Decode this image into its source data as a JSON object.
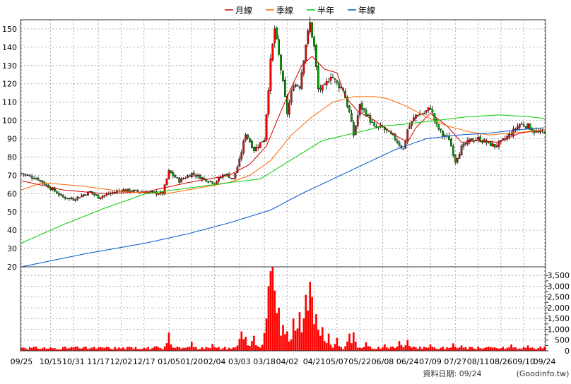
{
  "legend": {
    "items": [
      {
        "label": "月線",
        "color": "#cc0000"
      },
      {
        "label": "季線",
        "color": "#ff6600"
      },
      {
        "label": "半年",
        "color": "#00cc00"
      },
      {
        "label": "年線",
        "color": "#0055cc"
      }
    ]
  },
  "footer": {
    "data_date": "資料日期: 09/24",
    "source": "(Goodinfo.tw)"
  },
  "colors": {
    "up": "#ff0000",
    "down": "#00aa00",
    "grid": "#999999",
    "axis": "#333333",
    "volume": "#ff0000"
  },
  "chart_data": [
    {
      "type": "candlestick",
      "ylim": [
        20,
        155
      ],
      "y_ticks": [
        20,
        30,
        40,
        50,
        60,
        70,
        80,
        90,
        100,
        110,
        120,
        130,
        140,
        150
      ],
      "x_ticks": [
        "09/25",
        "10/15",
        "10/31",
        "11/17",
        "12/02",
        "12/17",
        "01/05",
        "01/20",
        "02/04",
        "03/03",
        "03/18",
        "04/02",
        "04/21",
        "05/07",
        "05/22",
        "06/08",
        "06/24",
        "07/09",
        "07/27",
        "08/11",
        "08/26",
        "09/10",
        "09/24"
      ],
      "x_tick_index": [
        0,
        14,
        25,
        37,
        48,
        59,
        71,
        82,
        93,
        105,
        117,
        128,
        141,
        152,
        163,
        174,
        186,
        197,
        209,
        220,
        231,
        242,
        252
      ],
      "n_sessions": 253,
      "price_anchors": [
        [
          0,
          71
        ],
        [
          8,
          68
        ],
        [
          14,
          63
        ],
        [
          20,
          58
        ],
        [
          25,
          57
        ],
        [
          33,
          61
        ],
        [
          37,
          58
        ],
        [
          48,
          62
        ],
        [
          58,
          61
        ],
        [
          68,
          60
        ],
        [
          71,
          72
        ],
        [
          76,
          67
        ],
        [
          82,
          71
        ],
        [
          88,
          68
        ],
        [
          93,
          66
        ],
        [
          98,
          71
        ],
        [
          102,
          68
        ],
        [
          105,
          78
        ],
        [
          108,
          93
        ],
        [
          112,
          84
        ],
        [
          117,
          90
        ],
        [
          120,
          132
        ],
        [
          122,
          150
        ],
        [
          125,
          128
        ],
        [
          128,
          104
        ],
        [
          131,
          120
        ],
        [
          134,
          119
        ],
        [
          137,
          142
        ],
        [
          139,
          153
        ],
        [
          141,
          140
        ],
        [
          143,
          117
        ],
        [
          146,
          118
        ],
        [
          149,
          125
        ],
        [
          152,
          120
        ],
        [
          155,
          117
        ],
        [
          158,
          104
        ],
        [
          160,
          92
        ],
        [
          163,
          108
        ],
        [
          166,
          104
        ],
        [
          170,
          96
        ],
        [
          174,
          96
        ],
        [
          180,
          90
        ],
        [
          184,
          84
        ],
        [
          186,
          95
        ],
        [
          190,
          103
        ],
        [
          194,
          104
        ],
        [
          197,
          107
        ],
        [
          200,
          97
        ],
        [
          203,
          92
        ],
        [
          206,
          90
        ],
        [
          209,
          78
        ],
        [
          212,
          85
        ],
        [
          216,
          89
        ],
        [
          220,
          90
        ],
        [
          224,
          88
        ],
        [
          228,
          86
        ],
        [
          231,
          88
        ],
        [
          236,
          93
        ],
        [
          240,
          98
        ],
        [
          244,
          97
        ],
        [
          247,
          94
        ],
        [
          250,
          93
        ],
        [
          252,
          94
        ]
      ],
      "moving_averages": [
        {
          "label": "月線",
          "anchors": [
            [
              0,
              67
            ],
            [
              20,
              62
            ],
            [
              40,
              60
            ],
            [
              60,
              61
            ],
            [
              80,
              66
            ],
            [
              100,
              70
            ],
            [
              110,
              76
            ],
            [
              118,
              86
            ],
            [
              125,
              105
            ],
            [
              130,
              118
            ],
            [
              135,
              130
            ],
            [
              140,
              135
            ],
            [
              146,
              128
            ],
            [
              152,
              126
            ],
            [
              156,
              113
            ],
            [
              162,
              105
            ],
            [
              170,
              100
            ],
            [
              180,
              92
            ],
            [
              186,
              88
            ],
            [
              190,
              96
            ],
            [
              197,
              104
            ],
            [
              205,
              97
            ],
            [
              212,
              88
            ],
            [
              220,
              89
            ],
            [
              230,
              88
            ],
            [
              240,
              93
            ],
            [
              252,
              95
            ]
          ]
        },
        {
          "label": "季線",
          "anchors": [
            [
              0,
              62
            ],
            [
              10,
              66
            ],
            [
              30,
              64
            ],
            [
              50,
              61
            ],
            [
              70,
              60
            ],
            [
              85,
              63
            ],
            [
              100,
              66
            ],
            [
              110,
              70
            ],
            [
              120,
              78
            ],
            [
              130,
              92
            ],
            [
              140,
              102
            ],
            [
              150,
              110
            ],
            [
              160,
              113
            ],
            [
              170,
              113
            ],
            [
              176,
              112
            ],
            [
              185,
              108
            ],
            [
              195,
              102
            ],
            [
              205,
              97
            ],
            [
              215,
              94
            ],
            [
              225,
              92
            ],
            [
              235,
              93
            ],
            [
              245,
              94
            ],
            [
              252,
              95
            ]
          ]
        },
        {
          "label": "半年",
          "anchors": [
            [
              0,
              33
            ],
            [
              20,
              43
            ],
            [
              40,
              52
            ],
            [
              60,
              60
            ],
            [
              80,
              63
            ],
            [
              100,
              66
            ],
            [
              115,
              68
            ],
            [
              125,
              75
            ],
            [
              135,
              82
            ],
            [
              145,
              89
            ],
            [
              160,
              93
            ],
            [
              175,
              97
            ],
            [
              185,
              98
            ],
            [
              200,
              100
            ],
            [
              215,
              102
            ],
            [
              230,
              103
            ],
            [
              245,
              102
            ],
            [
              252,
              101
            ]
          ]
        },
        {
          "label": "年線",
          "anchors": [
            [
              0,
              20
            ],
            [
              30,
              27
            ],
            [
              60,
              33
            ],
            [
              80,
              38
            ],
            [
              100,
              44
            ],
            [
              120,
              51
            ],
            [
              135,
              60
            ],
            [
              150,
              68
            ],
            [
              165,
              76
            ],
            [
              180,
              84
            ],
            [
              195,
              90
            ],
            [
              210,
              92
            ],
            [
              225,
              93
            ],
            [
              240,
              95
            ],
            [
              252,
              96
            ]
          ]
        }
      ]
    },
    {
      "type": "bar",
      "ylim": [
        0,
        3900
      ],
      "y_ticks": [
        0,
        250,
        500,
        750,
        1000,
        1250,
        1500,
        1750,
        2000,
        2250,
        2500,
        2750,
        3000,
        3250,
        3500
      ],
      "y_tick_labels": [
        "0",
        "",
        "500",
        "",
        "1,000",
        "",
        "1,500",
        "",
        "2,000",
        "",
        "2,500",
        "",
        "3,000",
        "",
        "3,500"
      ],
      "volume_spikes": [
        [
          0,
          150
        ],
        [
          14,
          120
        ],
        [
          25,
          160
        ],
        [
          40,
          130
        ],
        [
          55,
          180
        ],
        [
          65,
          220
        ],
        [
          71,
          850
        ],
        [
          82,
          420
        ],
        [
          92,
          320
        ],
        [
          105,
          550
        ],
        [
          106,
          900
        ],
        [
          108,
          650
        ],
        [
          112,
          700
        ],
        [
          118,
          1500
        ],
        [
          119,
          3000
        ],
        [
          120,
          3700
        ],
        [
          121,
          3900
        ],
        [
          122,
          2800
        ],
        [
          124,
          2000
        ],
        [
          126,
          1200
        ],
        [
          128,
          900
        ],
        [
          131,
          1500
        ],
        [
          134,
          1800
        ],
        [
          137,
          2600
        ],
        [
          139,
          3200
        ],
        [
          140,
          2500
        ],
        [
          142,
          1700
        ],
        [
          145,
          1100
        ],
        [
          148,
          800
        ],
        [
          152,
          600
        ],
        [
          158,
          800
        ],
        [
          160,
          850
        ],
        [
          166,
          400
        ],
        [
          175,
          300
        ],
        [
          182,
          450
        ],
        [
          186,
          500
        ],
        [
          197,
          300
        ],
        [
          208,
          350
        ],
        [
          212,
          250
        ],
        [
          220,
          200
        ],
        [
          236,
          300
        ],
        [
          244,
          250
        ],
        [
          250,
          200
        ]
      ]
    }
  ]
}
